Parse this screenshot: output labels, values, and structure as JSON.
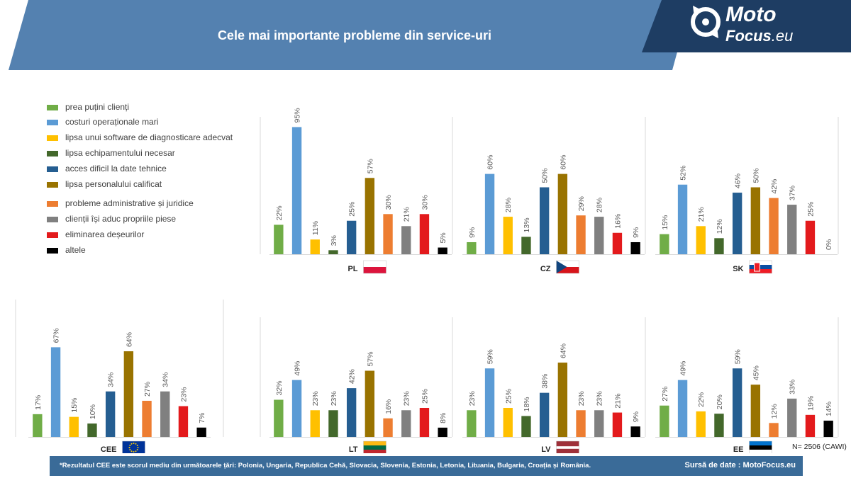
{
  "header": {
    "title": "Cele mai importante probleme din service-uri"
  },
  "logo": {
    "line1": "Moto",
    "line2": "Focus",
    "line2_suffix": ".eu"
  },
  "colors": {
    "band": "#5481b0",
    "logo_bg": "#1e3d63",
    "footer": "#3a6b98",
    "series": [
      "#70ad47",
      "#5b9bd5",
      "#ffc000",
      "#43682b",
      "#255e91",
      "#997300",
      "#ed7d31",
      "#808080",
      "#e31a1c",
      "#000000"
    ]
  },
  "legend": {
    "items": [
      {
        "label": "prea puțini clienți",
        "color": "#70ad47"
      },
      {
        "label": "costuri operaționale mari",
        "color": "#5b9bd5"
      },
      {
        "label": "lipsa unui software de diagnosticare adecvat",
        "color": "#ffc000"
      },
      {
        "label": "lipsa echipamentului necesar",
        "color": "#43682b"
      },
      {
        "label": "acces dificil la date tehnice",
        "color": "#255e91"
      },
      {
        "label": "lipsa personalului calificat",
        "color": "#997300"
      },
      {
        "label": "probleme administrative și juridice",
        "color": "#ed7d31"
      },
      {
        "label": "clienții își aduc propriile piese",
        "color": "#808080"
      },
      {
        "label": "eliminarea deșeurilor",
        "color": "#e31a1c"
      },
      {
        "label": "altele",
        "color": "#000000"
      }
    ]
  },
  "chart_data": [
    {
      "type": "bar",
      "title": "PL",
      "flag": "poland-flag",
      "categories": [
        "prea puțini clienți",
        "costuri operaționale mari",
        "lipsa unui software de diagnosticare adecvat",
        "lipsa echipamentului necesar",
        "acces dificil la date tehnice",
        "lipsa personalului calificat",
        "probleme administrative și juridice",
        "clienții își aduc propriile piese",
        "eliminarea deșeurilor",
        "altele"
      ],
      "values": [
        22,
        95,
        11,
        3,
        25,
        57,
        30,
        21,
        30,
        5
      ],
      "labels": [
        "22%",
        "95%",
        "11%",
        "3%",
        "25%",
        "57%",
        "30%",
        "21%",
        "30%",
        "5%"
      ],
      "ylim": [
        0,
        100
      ]
    },
    {
      "type": "bar",
      "title": "CZ",
      "flag": "czech-flag",
      "categories": [
        "prea puțini clienți",
        "costuri operaționale mari",
        "lipsa unui software de diagnosticare adecvat",
        "lipsa echipamentului necesar",
        "acces dificil la date tehnice",
        "lipsa personalului calificat",
        "probleme administrative și juridice",
        "clienții își aduc propriile piese",
        "eliminarea deșeurilor",
        "altele"
      ],
      "values": [
        9,
        60,
        28,
        13,
        50,
        60,
        29,
        28,
        16,
        9
      ],
      "labels": [
        "9%",
        "60%",
        "28%",
        "13%",
        "50%",
        "60%",
        "29%",
        "28%",
        "16%",
        "9%"
      ],
      "ylim": [
        0,
        100
      ]
    },
    {
      "type": "bar",
      "title": "SK",
      "flag": "slovakia-flag",
      "categories": [
        "prea puțini clienți",
        "costuri operaționale mari",
        "lipsa unui software de diagnosticare adecvat",
        "lipsa echipamentului necesar",
        "acces dificil la date tehnice",
        "lipsa personalului calificat",
        "probleme administrative și juridice",
        "clienții își aduc propriile piese",
        "eliminarea deșeurilor",
        "altele"
      ],
      "values": [
        15,
        52,
        21,
        12,
        46,
        50,
        42,
        37,
        25,
        0
      ],
      "labels": [
        "15%",
        "52%",
        "21%",
        "12%",
        "46%",
        "50%",
        "42%",
        "37%",
        "25%",
        "0%"
      ],
      "ylim": [
        0,
        100
      ]
    },
    {
      "type": "bar",
      "title": "CEE",
      "flag": "eu-flag",
      "categories": [
        "prea puțini clienți",
        "costuri operaționale mari",
        "lipsa unui software de diagnosticare adecvat",
        "lipsa echipamentului necesar",
        "acces dificil la date tehnice",
        "lipsa personalului calificat",
        "probleme administrative și juridice",
        "clienții își aduc propriile piese",
        "eliminarea deșeurilor",
        "altele"
      ],
      "values": [
        17,
        67,
        15,
        10,
        34,
        64,
        27,
        34,
        23,
        7
      ],
      "labels": [
        "17%",
        "67%",
        "15%",
        "10%",
        "34%",
        "64%",
        "27%",
        "34%",
        "23%",
        "7%"
      ],
      "ylim": [
        0,
        100
      ]
    },
    {
      "type": "bar",
      "title": "LT",
      "flag": "lithuania-flag",
      "categories": [
        "prea puțini clienți",
        "costuri operaționale mari",
        "lipsa unui software de diagnosticare adecvat",
        "lipsa echipamentului necesar",
        "acces dificil la date tehnice",
        "lipsa personalului calificat",
        "probleme administrative și juridice",
        "clienții își aduc propriile piese",
        "eliminarea deșeurilor",
        "altele"
      ],
      "values": [
        32,
        49,
        23,
        23,
        42,
        57,
        16,
        23,
        25,
        8
      ],
      "labels": [
        "32%",
        "49%",
        "23%",
        "23%",
        "42%",
        "57%",
        "16%",
        "23%",
        "25%",
        "8%"
      ],
      "ylim": [
        0,
        100
      ]
    },
    {
      "type": "bar",
      "title": "LV",
      "flag": "latvia-flag",
      "categories": [
        "prea puțini clienți",
        "costuri operaționale mari",
        "lipsa unui software de diagnosticare adecvat",
        "lipsa echipamentului necesar",
        "acces dificil la date tehnice",
        "lipsa personalului calificat",
        "probleme administrative și juridice",
        "clienții își aduc propriile piese",
        "eliminarea deșeurilor",
        "altele"
      ],
      "values": [
        23,
        59,
        25,
        18,
        38,
        64,
        23,
        23,
        21,
        9
      ],
      "labels": [
        "23%",
        "59%",
        "25%",
        "18%",
        "38%",
        "64%",
        "23%",
        "23%",
        "21%",
        "9%"
      ],
      "ylim": [
        0,
        100
      ]
    },
    {
      "type": "bar",
      "title": "EE",
      "flag": "estonia-flag",
      "categories": [
        "prea puțini clienți",
        "costuri operaționale mari",
        "lipsa unui software de diagnosticare adecvat",
        "lipsa echipamentului necesar",
        "acces dificil la date tehnice",
        "lipsa personalului calificat",
        "probleme administrative și juridice",
        "clienții își aduc propriile piese",
        "eliminarea deșeurilor",
        "altele"
      ],
      "values": [
        27,
        49,
        22,
        20,
        59,
        45,
        12,
        33,
        19,
        14
      ],
      "labels": [
        "27%",
        "49%",
        "22%",
        "20%",
        "59%",
        "45%",
        "12%",
        "33%",
        "19%",
        "14%"
      ],
      "ylim": [
        0,
        100
      ]
    }
  ],
  "sample_note": "N= 2506 (CAWI)",
  "footer": {
    "footnote": "*Rezultatul CEE este scorul mediu din următoarele țări: Polonia, Ungaria, Republica Cehă, Slovacia, Slovenia, Estonia, Letonia, Lituania, Bulgaria, Croația și România.",
    "source": "Sursă de date : MotoFocus.eu"
  }
}
